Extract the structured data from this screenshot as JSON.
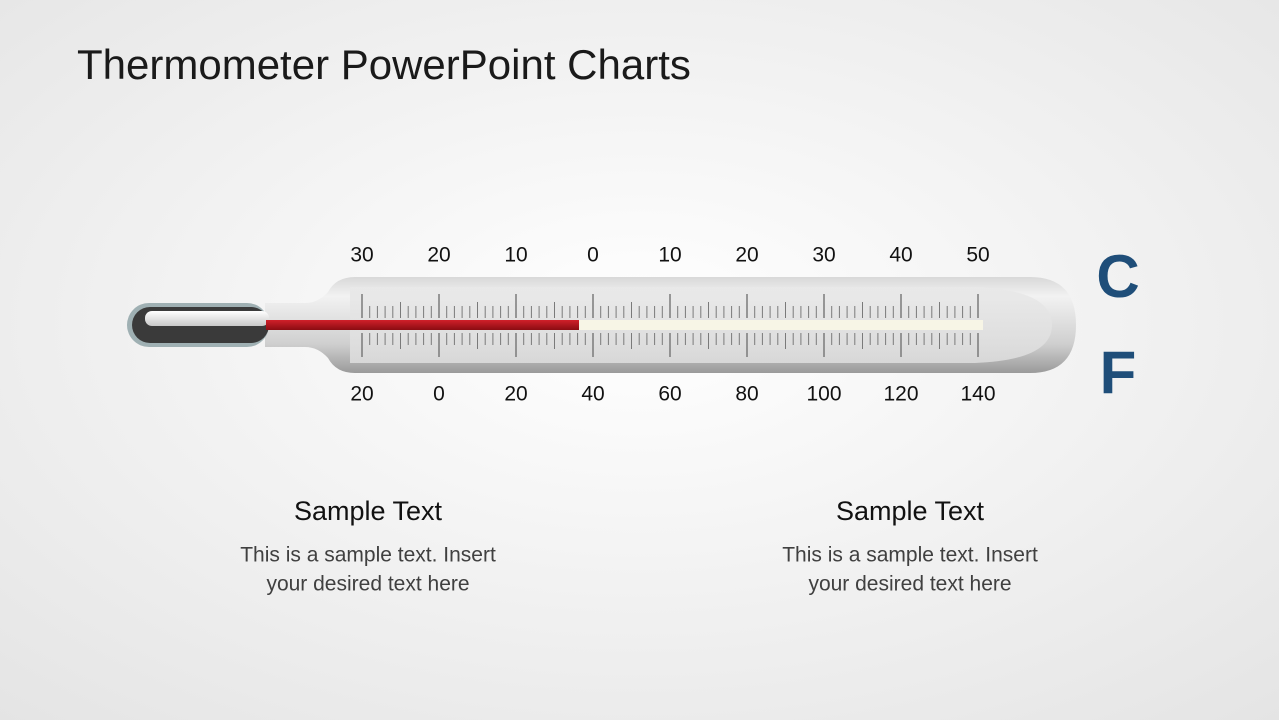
{
  "title": "Thermometer PowerPoint Charts",
  "thermometer": {
    "celsius": {
      "unit": "C",
      "labels": [
        "30",
        "20",
        "10",
        "0",
        "10",
        "20",
        "30",
        "40",
        "50"
      ]
    },
    "fahrenheit": {
      "unit": "F",
      "labels": [
        "20",
        "0",
        "20",
        "40",
        "60",
        "80",
        "100",
        "120",
        "140"
      ]
    }
  },
  "text_blocks": [
    {
      "heading": "Sample Text",
      "body_lines": [
        "This is a sample text. Insert",
        "your desired text here"
      ]
    },
    {
      "heading": "Sample Text",
      "body_lines": [
        "This is a sample text. Insert",
        "your desired text here"
      ]
    }
  ]
}
